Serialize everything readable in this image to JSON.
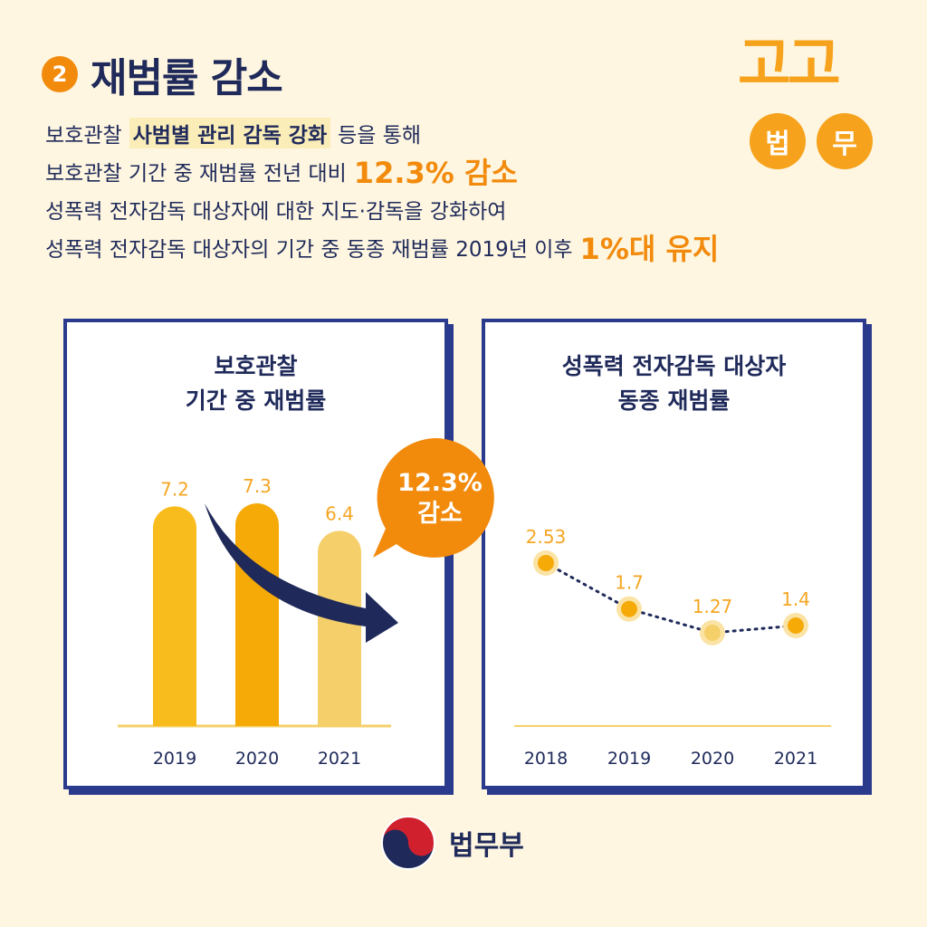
{
  "header": {
    "number": "2",
    "title": "재범률 감소"
  },
  "logo": {
    "top": "고고",
    "left_circle": "법",
    "right_circle": "무"
  },
  "intro": {
    "line1": {
      "a": "보호관찰",
      "highlight": "사범별 관리 감독 강화",
      "b": "등을 통해"
    },
    "line2": {
      "a": "보호관찰 기간 중 재범률 전년 대비",
      "big": "12.3% 감소"
    },
    "line3": {
      "a": "성폭력 전자감독 대상자에 대한 지도·감독을 강화하여"
    },
    "line4": {
      "a": "성폭력 전자감독 대상자의 기간 중 동종 재범률 2019년 이후",
      "big": "1%대 유지"
    }
  },
  "callout": {
    "line1": "12.3%",
    "line2": "감소"
  },
  "footer": {
    "label": "법무부"
  },
  "colors": {
    "navy": "#1F2A5A",
    "orange": "#F28A0C",
    "gold": "#F5B50E",
    "light_gold": "#F5D06A",
    "background": "#FEF6E0"
  },
  "chart_data": [
    {
      "type": "bar",
      "title_lines": [
        "보호관찰",
        "기간 중 재범률"
      ],
      "categories": [
        "2019",
        "2020",
        "2021"
      ],
      "values": [
        7.2,
        7.3,
        6.4
      ],
      "value_labels": [
        "7.2",
        "7.3",
        "6.4"
      ],
      "bar_colors": [
        "#F9BC1D",
        "#F5AA08",
        "#F5D06A"
      ],
      "ylim": [
        0,
        7.3
      ],
      "grid": false,
      "xlabel": "",
      "ylabel": ""
    },
    {
      "type": "line",
      "title_lines": [
        "성폭력 전자감독 대상자",
        "동종 재범률"
      ],
      "categories": [
        "2018",
        "2019",
        "2020",
        "2021"
      ],
      "values": [
        2.53,
        1.7,
        1.27,
        1.4
      ],
      "value_labels": [
        "2.53",
        "1.7",
        "1.27",
        "1.4"
      ],
      "ylim": [
        1.0,
        2.6
      ],
      "line_style": "dotted",
      "grid": false,
      "xlabel": "",
      "ylabel": ""
    }
  ]
}
